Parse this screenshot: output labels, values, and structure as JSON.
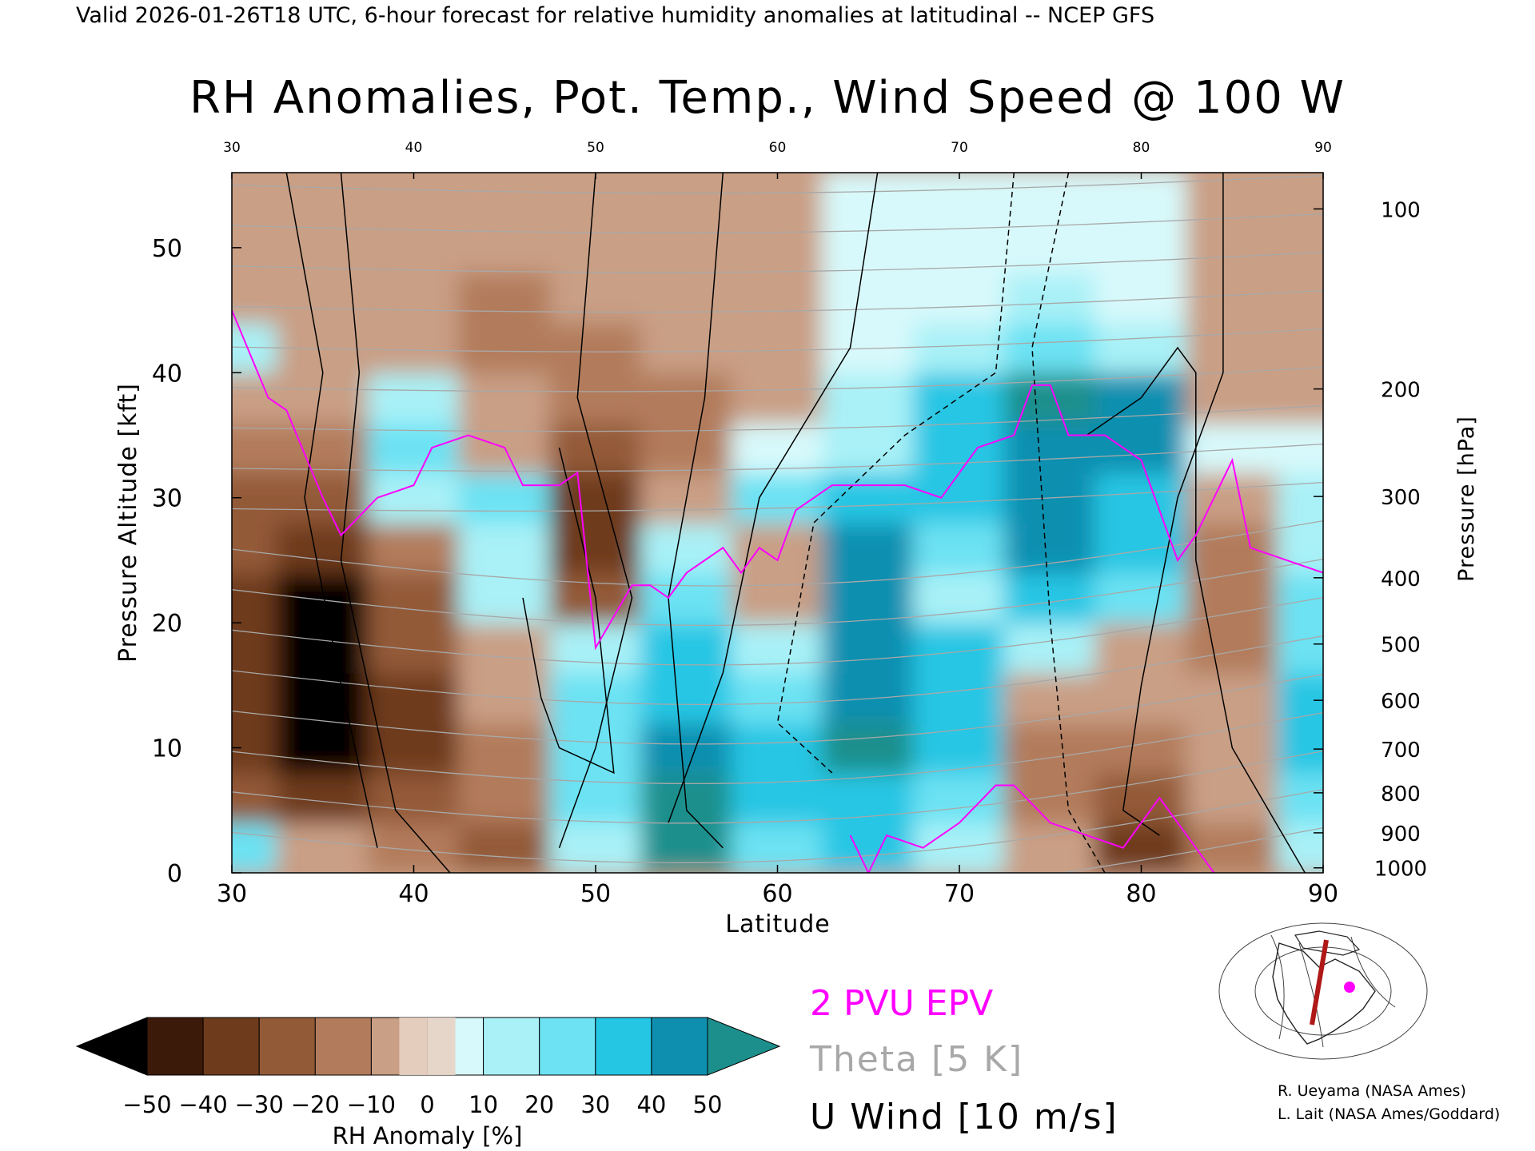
{
  "header": "Valid 2026-01-26T18 UTC, 6-hour forecast for relative humidity anomalies at latitudinal -- NCEP GFS",
  "title": "RH Anomalies, Pot. Temp., Wind Speed @ 100 W",
  "legend": {
    "epv": "2 PVU EPV",
    "theta": "Theta [5 K]",
    "uwind": "U Wind [10 m/s]",
    "epv_color": "#ff00ff",
    "theta_color": "#a8a8a8",
    "uwind_color": "#000000"
  },
  "credits": [
    "R. Ueyama (NASA Ames)",
    "L. Lait (NASA Ames/Goddard)"
  ],
  "colorbar": {
    "label": "RH Anomaly [%]",
    "ticks": [
      "-50",
      "-40",
      "-30",
      "-20",
      "-10",
      "0",
      "10",
      "20",
      "30",
      "40",
      "50"
    ],
    "colors": [
      "#3b1a0a",
      "#6e3b1c",
      "#935a37",
      "#b27c5c",
      "#c99f85",
      "#e8d1c3",
      "#d8f9fb",
      "#a9f1f7",
      "#6ce2f3",
      "#25c6e4",
      "#0f8fb0"
    ],
    "low_extend_color": "#000000",
    "high_extend_color": "#1c8f8c"
  },
  "chart_data": {
    "type": "heatmap",
    "xlabel": "Latitude",
    "ylabel": "Pressure Altitude [kft]",
    "ylabel_right": "Pressure [hPa]",
    "xlim": [
      30,
      90
    ],
    "ylim": [
      0,
      56
    ],
    "x_ticks": [
      30,
      40,
      50,
      60,
      70,
      80,
      90
    ],
    "y_ticks": [
      0,
      10,
      20,
      30,
      40,
      50
    ],
    "pressure_ticks": [
      {
        "hPa": "100",
        "kft": 53.1
      },
      {
        "hPa": "200",
        "kft": 38.7
      },
      {
        "hPa": "300",
        "kft": 30.1
      },
      {
        "hPa": "400",
        "kft": 23.6
      },
      {
        "hPa": "500",
        "kft": 18.3
      },
      {
        "hPa": "600",
        "kft": 13.8
      },
      {
        "hPa": "700",
        "kft": 9.9
      },
      {
        "hPa": "800",
        "kft": 6.4
      },
      {
        "hPa": "900",
        "kft": 3.2
      },
      {
        "hPa": "1000",
        "kft": 0.4
      }
    ],
    "rh_anomaly_grid": {
      "lats": [
        30,
        35,
        40,
        45,
        50,
        55,
        60,
        65,
        70,
        75,
        80,
        85,
        90
      ],
      "alts": [
        2,
        6,
        10,
        14,
        18,
        22,
        26,
        30,
        34,
        38,
        42,
        46,
        50,
        54
      ],
      "values": [
        [
          20,
          -10,
          -20,
          -30,
          10,
          50,
          20,
          30,
          10,
          -10,
          -40,
          -20,
          10
        ],
        [
          -30,
          -40,
          -30,
          -20,
          20,
          50,
          30,
          30,
          20,
          -20,
          -30,
          -10,
          20
        ],
        [
          -40,
          -50,
          -40,
          -20,
          20,
          40,
          30,
          50,
          30,
          -20,
          -20,
          -10,
          30
        ],
        [
          -40,
          -50,
          -40,
          -10,
          20,
          30,
          20,
          40,
          30,
          -10,
          -10,
          -10,
          30
        ],
        [
          -40,
          -50,
          -30,
          -10,
          10,
          30,
          10,
          40,
          30,
          10,
          -10,
          -20,
          20
        ],
        [
          -40,
          -50,
          -30,
          10,
          -30,
          20,
          -10,
          40,
          10,
          30,
          20,
          -20,
          20
        ],
        [
          -30,
          -40,
          -20,
          10,
          -40,
          10,
          -10,
          40,
          20,
          40,
          30,
          -20,
          10
        ],
        [
          -30,
          -30,
          10,
          20,
          -40,
          -10,
          20,
          30,
          30,
          40,
          30,
          -10,
          10
        ],
        [
          -20,
          -20,
          20,
          -10,
          -30,
          -20,
          0,
          10,
          30,
          40,
          40,
          0,
          0
        ],
        [
          -10,
          -10,
          10,
          -10,
          -20,
          -20,
          -10,
          10,
          30,
          50,
          40,
          -10,
          -10
        ],
        [
          10,
          -10,
          -10,
          -20,
          -20,
          -10,
          -10,
          0,
          10,
          20,
          10,
          -10,
          -10
        ],
        [
          -10,
          -10,
          -10,
          -20,
          -10,
          -10,
          -5,
          0,
          5,
          10,
          5,
          -5,
          -5
        ],
        [
          -5,
          -5,
          -5,
          -10,
          -5,
          -5,
          -5,
          0,
          0,
          5,
          0,
          -5,
          -5
        ],
        [
          -5,
          -10,
          -10,
          -10,
          -5,
          -5,
          -5,
          0,
          0,
          5,
          0,
          -5,
          -5
        ]
      ]
    },
    "epv_2pvu": [
      {
        "lat": 30,
        "alt": 45
      },
      {
        "lat": 32,
        "alt": 38
      },
      {
        "lat": 33,
        "alt": 37
      },
      {
        "lat": 35,
        "alt": 30
      },
      {
        "lat": 36,
        "alt": 27
      },
      {
        "lat": 38,
        "alt": 30
      },
      {
        "lat": 40,
        "alt": 31
      },
      {
        "lat": 41,
        "alt": 34
      },
      {
        "lat": 43,
        "alt": 35
      },
      {
        "lat": 45,
        "alt": 34
      },
      {
        "lat": 46,
        "alt": 31
      },
      {
        "lat": 48,
        "alt": 31
      },
      {
        "lat": 49,
        "alt": 32
      },
      {
        "lat": 50,
        "alt": 18
      },
      {
        "lat": 52,
        "alt": 23
      },
      {
        "lat": 53,
        "alt": 23
      },
      {
        "lat": 54,
        "alt": 22
      },
      {
        "lat": 55,
        "alt": 24
      },
      {
        "lat": 57,
        "alt": 26
      },
      {
        "lat": 58,
        "alt": 24
      },
      {
        "lat": 59,
        "alt": 26
      },
      {
        "lat": 60,
        "alt": 25
      },
      {
        "lat": 61,
        "alt": 29
      },
      {
        "lat": 63,
        "alt": 31
      },
      {
        "lat": 65,
        "alt": 31
      },
      {
        "lat": 67,
        "alt": 31
      },
      {
        "lat": 69,
        "alt": 30
      },
      {
        "lat": 71,
        "alt": 34
      },
      {
        "lat": 73,
        "alt": 35
      },
      {
        "lat": 74,
        "alt": 39
      },
      {
        "lat": 75,
        "alt": 39
      },
      {
        "lat": 76,
        "alt": 35
      },
      {
        "lat": 78,
        "alt": 35
      },
      {
        "lat": 80,
        "alt": 33
      },
      {
        "lat": 82,
        "alt": 25
      },
      {
        "lat": 83,
        "alt": 27
      },
      {
        "lat": 85,
        "alt": 33
      },
      {
        "lat": 86,
        "alt": 26
      },
      {
        "lat": 88,
        "alt": 25
      },
      {
        "lat": 90,
        "alt": 24
      }
    ],
    "epv_2pvu_low": [
      {
        "lat": 64,
        "alt": 3
      },
      {
        "lat": 65,
        "alt": 0
      },
      {
        "lat": 66,
        "alt": 3
      },
      {
        "lat": 68,
        "alt": 2
      },
      {
        "lat": 70,
        "alt": 4
      },
      {
        "lat": 72,
        "alt": 7
      },
      {
        "lat": 73,
        "alt": 7
      },
      {
        "lat": 75,
        "alt": 4
      },
      {
        "lat": 77,
        "alt": 3
      },
      {
        "lat": 79,
        "alt": 2
      },
      {
        "lat": 81,
        "alt": 6
      },
      {
        "lat": 83,
        "alt": 2
      },
      {
        "lat": 84,
        "alt": 0
      }
    ],
    "theta_levels": [
      250,
      260,
      270,
      280,
      290,
      300,
      310,
      320,
      330,
      340,
      350,
      360,
      370,
      380,
      390,
      400,
      410,
      420
    ],
    "u_wind_levels_labeled": [
      -10,
      0,
      10,
      30
    ]
  }
}
